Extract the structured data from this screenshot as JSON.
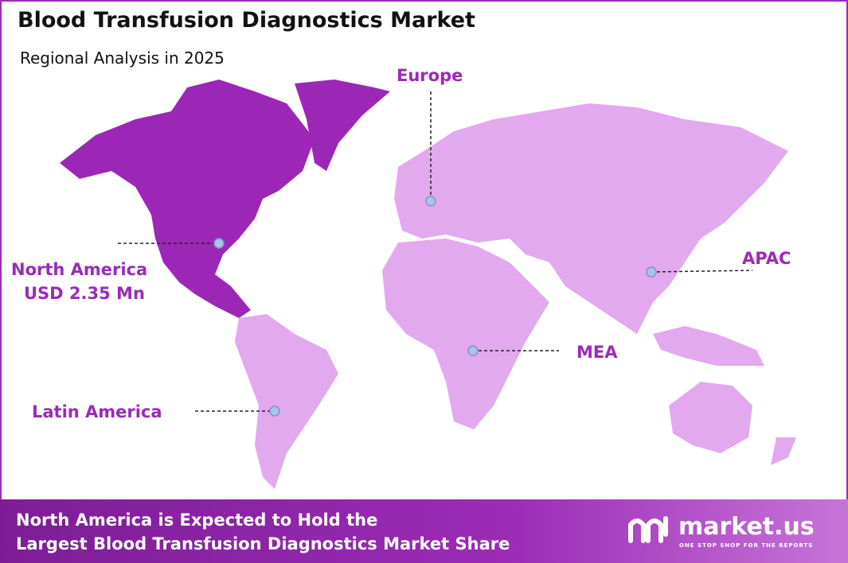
{
  "header": {
    "title": "Blood Transfusion Diagnostics Market",
    "subtitle": "Regional Analysis in 2025"
  },
  "regions": [
    {
      "label": "North America",
      "value_label": "USD 2.35 Mn"
    },
    {
      "label": "Europe"
    },
    {
      "label": "APAC"
    },
    {
      "label": "MEA"
    },
    {
      "label": "Latin America"
    }
  ],
  "footer": {
    "lines": [
      "North America is Expected to Hold the",
      "Largest Blood Transfusion Diagnostics Market Share"
    ]
  },
  "brand": {
    "name": "market.us",
    "tagline": "ONE STOP SHOP FOR THE REPORTS"
  }
}
